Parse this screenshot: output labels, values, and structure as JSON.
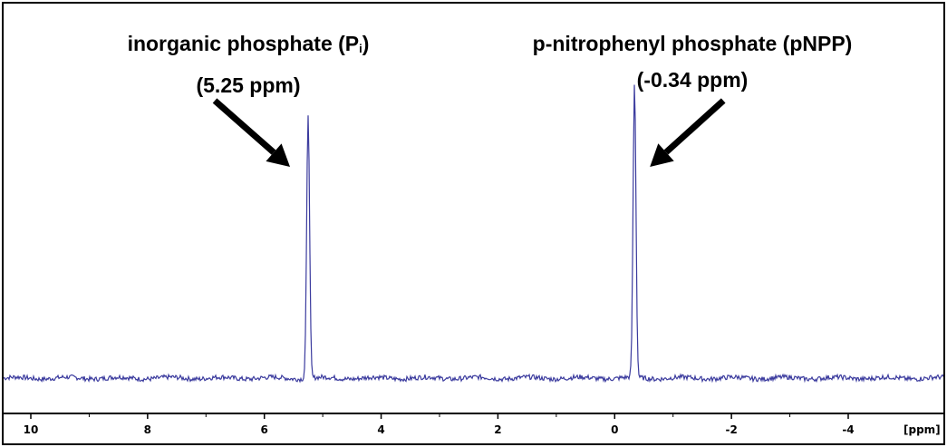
{
  "chart_data": {
    "type": "line",
    "title": "",
    "xlabel": "[ppm]",
    "ylabel": "",
    "x_axis": {
      "reversed": true,
      "range": [
        10.5,
        -5.0
      ],
      "ticks": [
        "10",
        "8",
        "6",
        "4",
        "2",
        "0",
        "-2",
        "-4"
      ],
      "tick_values": [
        10,
        8,
        6,
        4,
        2,
        0,
        -2,
        -4
      ],
      "unit_label": "[ppm]"
    },
    "series": [
      {
        "color": "#3b3b9e",
        "baseline": 0.02,
        "peaks": [
          {
            "x": 5.25,
            "height": 1.0
          },
          {
            "x": -0.34,
            "height": 1.11
          }
        ]
      }
    ],
    "annotations": [
      {
        "line1": "inorganic phosphate (P",
        "subscript": "i",
        "line1_end": ")",
        "line2": "(5.25 ppm)",
        "ppm": 5.25
      },
      {
        "line1": "p-nitrophenyl phosphate (pNPP)",
        "subscript": "",
        "line1_end": "",
        "line2": "(-0.34 ppm)",
        "ppm": -0.34
      }
    ],
    "grid": false,
    "legend": "none"
  }
}
